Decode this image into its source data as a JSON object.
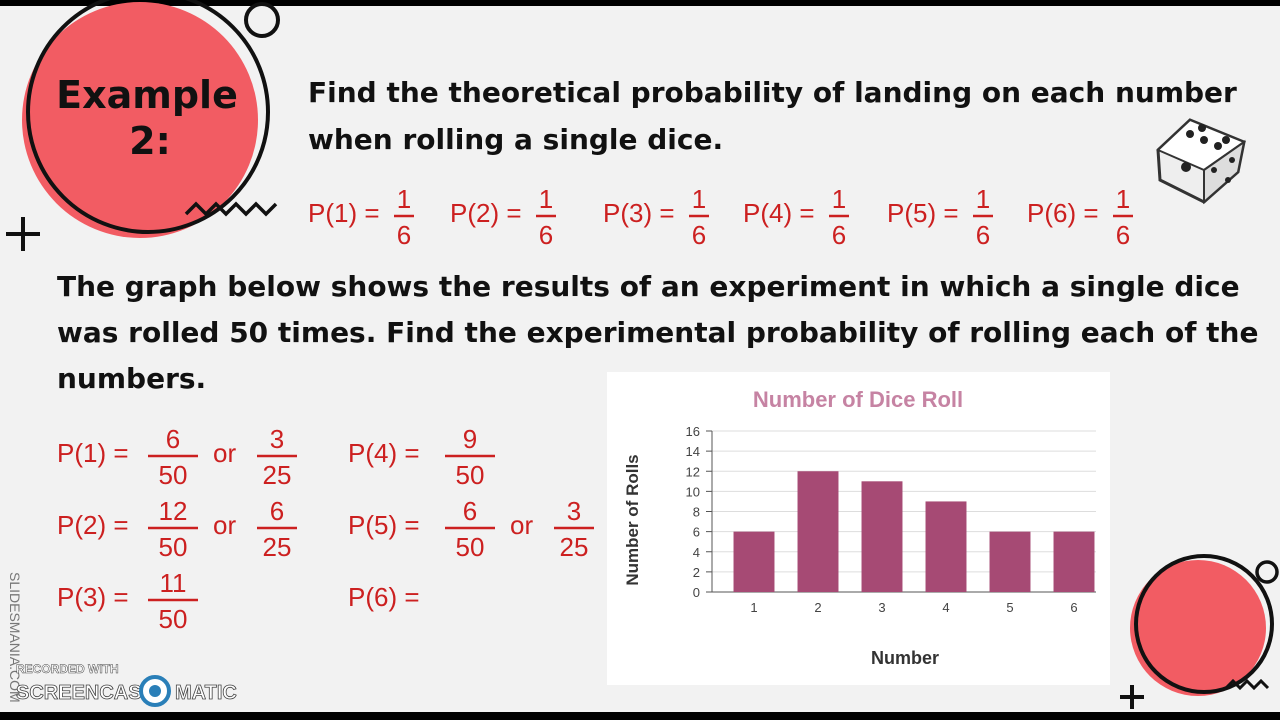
{
  "example": {
    "line1": "Example",
    "line2": "2:"
  },
  "question1": {
    "line1": "Find the theoretical probability of landing on each number",
    "line2": "when rolling a single dice."
  },
  "theoretical": [
    {
      "label": "P(1) =",
      "numerator": "1",
      "denominator": "6"
    },
    {
      "label": "P(2) =",
      "numerator": "1",
      "denominator": "6"
    },
    {
      "label": "P(3) =",
      "numerator": "1",
      "denominator": "6"
    },
    {
      "label": "P(4) =",
      "numerator": "1",
      "denominator": "6"
    },
    {
      "label": "P(5) =",
      "numerator": "1",
      "denominator": "6"
    },
    {
      "label": "P(6) =",
      "numerator": "1",
      "denominator": "6"
    }
  ],
  "question2": {
    "line1": "The graph below shows the results of an experiment in which a single dice",
    "line2": "was rolled 50 times. Find the experimental probability of rolling each of the",
    "line3": "numbers."
  },
  "experimental": [
    {
      "label": "P(1) =",
      "numerator": "6",
      "denominator": "50",
      "or": "or",
      "alt_numerator": "3",
      "alt_denominator": "25"
    },
    {
      "label": "P(2) =",
      "numerator": "12",
      "denominator": "50",
      "or": "or",
      "alt_numerator": "6",
      "alt_denominator": "25"
    },
    {
      "label": "P(3) =",
      "numerator": "11",
      "denominator": "50"
    },
    {
      "label": "P(4) =",
      "numerator": "9",
      "denominator": "50"
    },
    {
      "label": "P(5) =",
      "numerator": "6",
      "denominator": "50",
      "or": "or",
      "alt_numerator": "3",
      "alt_denominator": "25"
    },
    {
      "label": "P(6) ="
    }
  ],
  "chart_data": {
    "type": "bar",
    "title": "Number of Dice Roll",
    "x_label": "Number",
    "y_label": "Number of Rolls",
    "categories": [
      "1",
      "2",
      "3",
      "4",
      "5",
      "6"
    ],
    "values": [
      6,
      12,
      11,
      9,
      6,
      6
    ],
    "color": "#a64a74",
    "ylim": [
      0,
      16
    ],
    "yticks": [
      0,
      2,
      4,
      6,
      8,
      10,
      12,
      14,
      16
    ],
    "grid": true
  },
  "watermarks": {
    "site": "SLIDESMANIA.COM",
    "recorded": "RECORDED WITH",
    "brand_left": "SCREENCAST",
    "brand_right": "MATIC"
  }
}
